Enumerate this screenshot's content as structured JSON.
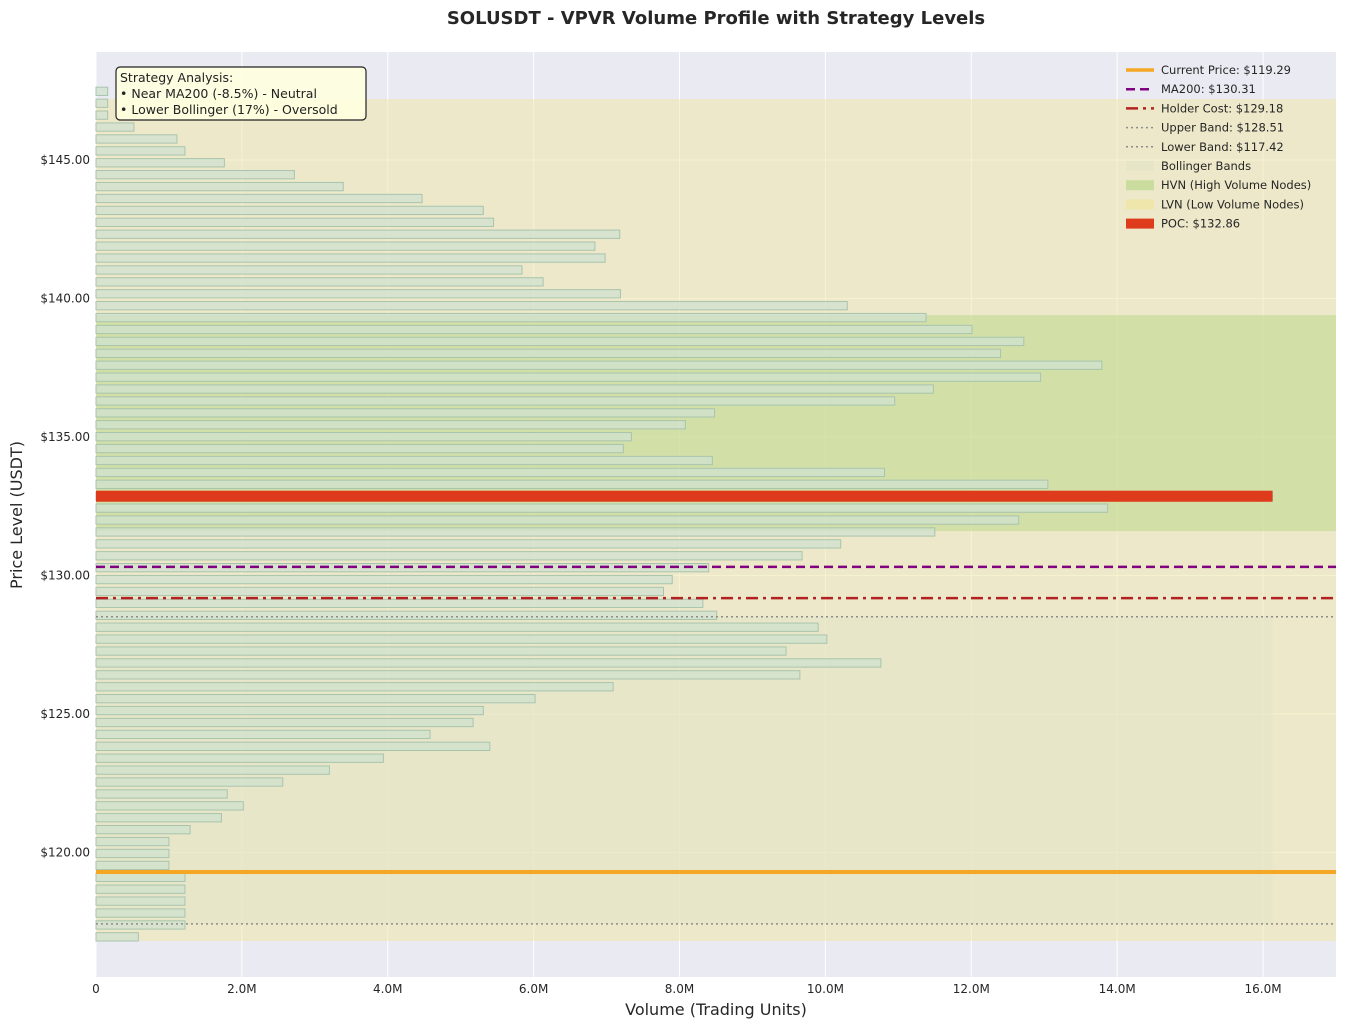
{
  "colors": {
    "plot_bg": "#eaeaf2",
    "grid": "#ffffff",
    "bar_fill": "#cfe2cf",
    "bar_stroke": "#a8c4ad",
    "hvn_zone": "#bcd98c",
    "lvn_zone": "#f0e6a0",
    "bollinger_zone": "#e4e4c8",
    "current_price": "#f5a623",
    "ma200": "#800080",
    "holder_cost": "#b22222",
    "bands": "#8c8c8c",
    "poc": "#dd3b1b"
  },
  "chart_data": {
    "type": "bar",
    "orientation": "horizontal",
    "title": "SOLUSDT - VPVR Volume Profile with Strategy Levels",
    "xlabel": "Volume (Trading Units)",
    "ylabel": "Price Level (USDT)",
    "xlim": [
      0,
      17000000
    ],
    "ylim": [
      115.5,
      148.9
    ],
    "x_ticks": [
      0,
      2000000,
      4000000,
      6000000,
      8000000,
      10000000,
      12000000,
      14000000,
      16000000
    ],
    "x_tick_labels": [
      "0",
      "2.0M",
      "4.0M",
      "6.0M",
      "8.0M",
      "10.0M",
      "12.0M",
      "14.0M",
      "16.0M"
    ],
    "y_ticks": [
      120,
      125,
      130,
      135,
      140,
      145
    ],
    "y_tick_labels": [
      "$120.00",
      "$125.00",
      "$130.00",
      "$135.00",
      "$140.00",
      "$145.00"
    ],
    "grid": true,
    "legend_position": "top-right",
    "annotation": {
      "lines": [
        "Strategy Analysis:",
        "• Near MA200 (-8.5%) - Neutral",
        "• Lower Bollinger (17%) - Oversold"
      ]
    },
    "bin_height": 0.3,
    "bins": [
      {
        "price": 116.95,
        "volume": 580000
      },
      {
        "price": 117.38,
        "volume": 1220000
      },
      {
        "price": 117.81,
        "volume": 1220000
      },
      {
        "price": 118.24,
        "volume": 1220000
      },
      {
        "price": 118.67,
        "volume": 1220000
      },
      {
        "price": 119.1,
        "volume": 1220000
      },
      {
        "price": 119.53,
        "volume": 1000000
      },
      {
        "price": 119.96,
        "volume": 1000000
      },
      {
        "price": 120.39,
        "volume": 1000000
      },
      {
        "price": 120.82,
        "volume": 1290000
      },
      {
        "price": 121.25,
        "volume": 1720000
      },
      {
        "price": 121.68,
        "volume": 2020000
      },
      {
        "price": 122.11,
        "volume": 1800000
      },
      {
        "price": 122.54,
        "volume": 2560000
      },
      {
        "price": 122.97,
        "volume": 3200000
      },
      {
        "price": 123.4,
        "volume": 3940000
      },
      {
        "price": 123.83,
        "volume": 5400000
      },
      {
        "price": 124.26,
        "volume": 4580000
      },
      {
        "price": 124.69,
        "volume": 5170000
      },
      {
        "price": 125.12,
        "volume": 5310000
      },
      {
        "price": 125.55,
        "volume": 6020000
      },
      {
        "price": 125.98,
        "volume": 7090000
      },
      {
        "price": 126.41,
        "volume": 9650000
      },
      {
        "price": 126.84,
        "volume": 10760000
      },
      {
        "price": 127.27,
        "volume": 9460000
      },
      {
        "price": 127.7,
        "volume": 10020000
      },
      {
        "price": 128.13,
        "volume": 9900000
      },
      {
        "price": 128.56,
        "volume": 8510000
      },
      {
        "price": 128.99,
        "volume": 8320000
      },
      {
        "price": 129.42,
        "volume": 7780000
      },
      {
        "price": 129.85,
        "volume": 7900000
      },
      {
        "price": 130.28,
        "volume": 8400000
      },
      {
        "price": 130.71,
        "volume": 9680000
      },
      {
        "price": 131.14,
        "volume": 10210000
      },
      {
        "price": 131.57,
        "volume": 11500000
      },
      {
        "price": 132.0,
        "volume": 12650000
      },
      {
        "price": 132.43,
        "volume": 13870000
      },
      {
        "price": 132.86,
        "volume": 16130000
      },
      {
        "price": 133.29,
        "volume": 13050000
      },
      {
        "price": 133.72,
        "volume": 10810000
      },
      {
        "price": 134.15,
        "volume": 8450000
      },
      {
        "price": 134.58,
        "volume": 7230000
      },
      {
        "price": 135.01,
        "volume": 7340000
      },
      {
        "price": 135.44,
        "volume": 8080000
      },
      {
        "price": 135.87,
        "volume": 8480000
      },
      {
        "price": 136.3,
        "volume": 10950000
      },
      {
        "price": 136.73,
        "volume": 11480000
      },
      {
        "price": 137.16,
        "volume": 12950000
      },
      {
        "price": 137.59,
        "volume": 13790000
      },
      {
        "price": 138.02,
        "volume": 12400000
      },
      {
        "price": 138.45,
        "volume": 12720000
      },
      {
        "price": 138.88,
        "volume": 12010000
      },
      {
        "price": 139.31,
        "volume": 11380000
      },
      {
        "price": 139.74,
        "volume": 10300000
      },
      {
        "price": 140.17,
        "volume": 7190000
      },
      {
        "price": 140.6,
        "volume": 6130000
      },
      {
        "price": 141.03,
        "volume": 5840000
      },
      {
        "price": 141.46,
        "volume": 6980000
      },
      {
        "price": 141.89,
        "volume": 6840000
      },
      {
        "price": 142.32,
        "volume": 7180000
      },
      {
        "price": 142.75,
        "volume": 5450000
      },
      {
        "price": 143.18,
        "volume": 5310000
      },
      {
        "price": 143.61,
        "volume": 4470000
      },
      {
        "price": 144.04,
        "volume": 3390000
      },
      {
        "price": 144.47,
        "volume": 2720000
      },
      {
        "price": 144.9,
        "volume": 1760000
      },
      {
        "price": 145.33,
        "volume": 1220000
      },
      {
        "price": 145.76,
        "volume": 1110000
      },
      {
        "price": 146.19,
        "volume": 520000
      },
      {
        "price": 146.62,
        "volume": 160000
      },
      {
        "price": 147.05,
        "volume": 160000
      },
      {
        "price": 147.48,
        "volume": 160000
      }
    ],
    "zones": {
      "lvn": {
        "price_from": 116.8,
        "price_to": 147.2
      },
      "hvn": {
        "price_from": 131.6,
        "price_to": 139.4
      },
      "bollinger": {
        "price_from": 117.42,
        "price_to": 128.51,
        "volume_to": 16130000
      }
    },
    "levels": [
      {
        "key": "ma200",
        "price": 130.31,
        "style": "dashed"
      },
      {
        "key": "holder_cost",
        "price": 129.18,
        "style": "dashdot"
      },
      {
        "key": "upper_band",
        "price": 128.51,
        "style": "dotted"
      },
      {
        "key": "lower_band",
        "price": 117.42,
        "style": "dotted"
      },
      {
        "key": "current_price",
        "price": 119.29,
        "style": "solid"
      }
    ],
    "poc": {
      "price": 132.86,
      "volume": 16130000
    },
    "legend": [
      {
        "key": "current_price",
        "label": "Current Price: $119.29",
        "kind": "line",
        "style": "solid"
      },
      {
        "key": "ma200",
        "label": "MA200: $130.31",
        "kind": "line",
        "style": "dashed"
      },
      {
        "key": "holder_cost",
        "label": "Holder Cost: $129.18",
        "kind": "line",
        "style": "dashdot"
      },
      {
        "key": "bands",
        "label": "Upper Band: $128.51",
        "kind": "line",
        "style": "dotted"
      },
      {
        "key": "bands",
        "label": "Lower Band: $117.42",
        "kind": "line",
        "style": "dotted"
      },
      {
        "key": "bollinger_zone",
        "label": "Bollinger Bands",
        "kind": "patch"
      },
      {
        "key": "hvn_zone",
        "label": "HVN (High Volume Nodes)",
        "kind": "patch"
      },
      {
        "key": "lvn_zone",
        "label": "LVN (Low Volume Nodes)",
        "kind": "patch"
      },
      {
        "key": "poc",
        "label": "POC: $132.86",
        "kind": "patch"
      }
    ]
  }
}
